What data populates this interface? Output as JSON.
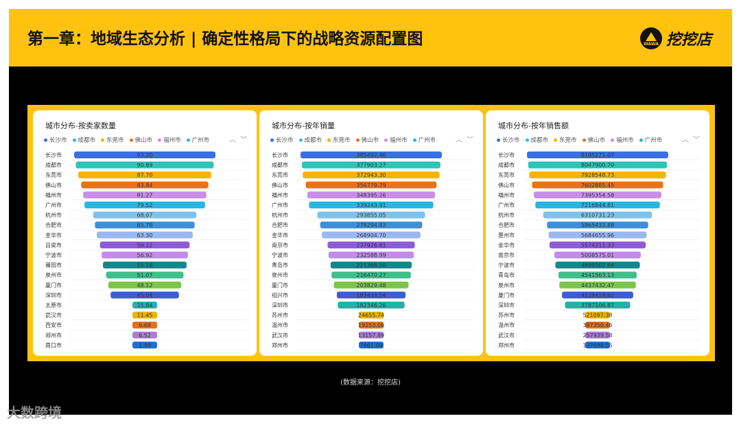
{
  "header": {
    "title": "第一章：地域生态分析 | 确定性格局下的战略资源配置图",
    "brand": "挖挖店",
    "brand_mark": "WAWA"
  },
  "legend": {
    "items": [
      {
        "label": "长沙市",
        "color": "#3b6fe0"
      },
      {
        "label": "成都市",
        "color": "#2ec4b6"
      },
      {
        "label": "东莞市",
        "color": "#f5b400"
      },
      {
        "label": "佛山市",
        "color": "#e8731c"
      },
      {
        "label": "福州市",
        "color": "#c98ee8"
      },
      {
        "label": "广州市",
        "color": "#29b6e0"
      }
    ]
  },
  "nav": {
    "prev": "︿",
    "next": "﹀"
  },
  "chart_data": [
    {
      "type": "bar",
      "title": "城市分布-按卖家数量",
      "categories": [
        "长沙市",
        "成都市",
        "东莞市",
        "佛山市",
        "福州市",
        "广州市",
        "杭州市",
        "合肥市",
        "金华市",
        "吕梁市",
        "宁波市",
        "莆田市",
        "泉州市",
        "厦门市",
        "深圳市",
        "太原市",
        "武汉市",
        "西安市",
        "郑州市",
        "周口市"
      ],
      "values": [
        93.2,
        90.89,
        87.7,
        83.84,
        81.27,
        79.52,
        68.07,
        65.78,
        63.3,
        59.12,
        56.92,
        55.18,
        51.07,
        48.12,
        45.04,
        15.84,
        11.45,
        6.69,
        6.52,
        1.9
      ],
      "labels": [
        "93.20",
        "90.89",
        "87.70",
        "83.84",
        "81.27",
        "79.52",
        "68.07",
        "65.78",
        "63.30",
        "59.12",
        "56.92",
        "55.18",
        "51.07",
        "48.12",
        "45.04",
        "15.84",
        "11.45",
        "6.69",
        "6.52",
        "1.90"
      ]
    },
    {
      "type": "bar",
      "title": "城市分布-按年销量",
      "categories": [
        "长沙市",
        "成都市",
        "东莞市",
        "佛山市",
        "福州市",
        "广州市",
        "杭州市",
        "合肥市",
        "金华市",
        "南京市",
        "宁波市",
        "青岛市",
        "泉州市",
        "厦门市",
        "绍兴市",
        "深圳市",
        "苏州市",
        "温州市",
        "武汉市",
        "郑州市"
      ],
      "values": [
        385492.46,
        377903.27,
        372943.3,
        356779.79,
        348395.26,
        339243.91,
        293855.05,
        278294.83,
        268904.7,
        237926.81,
        232588.99,
        221368.5,
        216470.27,
        203829.48,
        187433.54,
        182346.26,
        24655.74,
        19253.06,
        13157.89,
        7461.0
      ],
      "labels": [
        "385492.46",
        "377903.27",
        "372943.30",
        "356779.79",
        "348395.26",
        "339243.91",
        "293855.05",
        "278294.83",
        "268904.70",
        "237926.81",
        "232588.99",
        "221368.50",
        "216470.27",
        "203829.48",
        "187433.54",
        "182346.26",
        "24655.74",
        "19253.06",
        "13157.89",
        "7461.00"
      ]
    },
    {
      "type": "bar",
      "title": "城市分布-按年销售额",
      "categories": [
        "长沙市",
        "成都市",
        "东莞市",
        "佛山市",
        "福州市",
        "广州市",
        "杭州市",
        "合肥市",
        "惠州市",
        "金华市",
        "南京市",
        "宁波市",
        "青岛市",
        "泉州市",
        "厦门市",
        "深圳市",
        "苏州市",
        "温州市",
        "武汉市",
        "郑州市"
      ],
      "values": [
        8195271.07,
        8047900.7,
        7928548.73,
        7602885.45,
        7395354.58,
        7216844.81,
        6310731.23,
        5865433.88,
        5684655.96,
        5574211.33,
        5008575.01,
        4899502.64,
        4541563.13,
        4437432.47,
        4128419.62,
        3787106.87,
        521097.38,
        387350.46,
        257939.58,
        137698.55
      ],
      "labels": [
        "8195271.07",
        "8047900.70",
        "7928548.73",
        "7602885.45",
        "7395354.58",
        "7216844.81",
        "6310731.23",
        "5865433.88",
        "5684655.96",
        "5574211.33",
        "5008575.01",
        "4899502.64",
        "4541563.13",
        "4437432.47",
        "4128419.62",
        "3787106.87",
        "521097.38",
        "387350.46",
        "257939.58",
        "137698.55"
      ]
    }
  ],
  "bar_colors": [
    "#3b6fe0",
    "#2ec4b6",
    "#f5b400",
    "#e8731c",
    "#c98ee8",
    "#29b6e0",
    "#7ec3ee",
    "#3f8fd6",
    "#9cb8f0",
    "#8e5bd6",
    "#c48bec",
    "#13878a",
    "#3fbf8c",
    "#7cc54b",
    "#3a5fcf",
    "#28b0a8",
    "#f0b400",
    "#e0701c",
    "#b07ad6",
    "#1f6fd0"
  ],
  "source": "(数据来源：挖挖店)",
  "watermark": "大数跨境"
}
